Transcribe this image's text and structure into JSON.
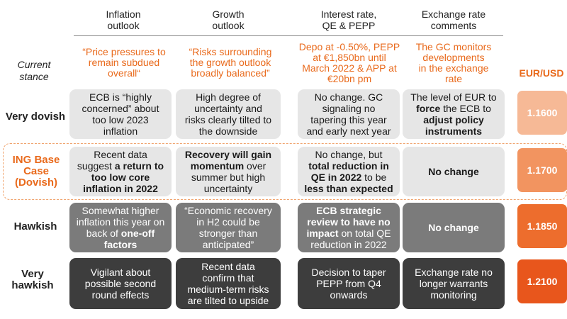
{
  "columns": [
    [
      "Inflation",
      "outlook"
    ],
    [
      "Growth",
      "outlook"
    ],
    [
      "Interest rate,",
      "QE & PEPP"
    ],
    [
      "Exchange rate",
      "comments"
    ]
  ],
  "current_stance": {
    "label": [
      "Current",
      "stance"
    ],
    "inflation": [
      "“Price pressures to",
      "remain subdued",
      "overall“"
    ],
    "growth": [
      "“Risks surrounding",
      "the growth outlook",
      "broadly balanced”"
    ],
    "rates": [
      "Depo at -0.50%, PEPP",
      "at €1,850bn until",
      "March 2022 & APP at",
      "€20bn pm"
    ],
    "fx": [
      "The GC monitors",
      "developments",
      "in the exchange",
      "rate"
    ]
  },
  "eurusd_header": "EUR/USD",
  "rows": {
    "very_dovish": {
      "label": [
        "Very dovish"
      ],
      "eurusd": "1.1600",
      "inflation": [
        "ECB is “highly",
        "concerned” about",
        "too low 2023",
        "inflation"
      ],
      "growth": [
        "High degree of",
        "uncertainty and",
        "risks clearly tilted to",
        "the downside"
      ],
      "rates": [
        "No change. GC",
        "signaling no",
        "tapering this year",
        "and early next year"
      ],
      "fx": {
        "line1": "The level of EUR to",
        "line2_bold": "force",
        "line2_rest": " the ECB to",
        "line3": "adjust policy",
        "line4": "instruments"
      }
    },
    "base": {
      "label": [
        "ING Base",
        "Case",
        "(Dovish)"
      ],
      "eurusd": "1.1700",
      "inflation": {
        "line1": "Recent data",
        "line2_rest": "suggest ",
        "line2_bold": "a return to",
        "line3": "too low core",
        "line4": "inflation in 2022"
      },
      "growth": {
        "line1": "Recovery will gain",
        "line2": "momentum",
        "line2_rest": " over",
        "line3": "summer but high",
        "line4": "uncertainty"
      },
      "rates": {
        "line1": "No change, but",
        "line2": "total reduction in",
        "line3_bold": "QE in 2022",
        "line3_rest": " to be",
        "line4": "less than expected"
      },
      "fx": "No change"
    },
    "hawkish": {
      "label": [
        "Hawkish"
      ],
      "eurusd": "1.1850",
      "inflation": {
        "line1": "Somewhat higher",
        "line2": "inflation this year on",
        "line3_rest": "back of ",
        "line3_bold": "one-off",
        "line4": "factors"
      },
      "growth": [
        "“Economic recovery",
        "in H2 could be",
        "stronger than",
        "anticipated”"
      ],
      "rates": {
        "line1": "ECB strategic",
        "line2": "review to have no",
        "line3_bold": "impact",
        "line3_rest": " on total QE",
        "line4": "reduction in 2022"
      },
      "fx": "No change"
    },
    "very_hawkish": {
      "label": [
        "Very",
        "hawkish"
      ],
      "eurusd": "1.2100",
      "inflation": [
        "Vigilant about",
        "possible second",
        "round effects"
      ],
      "growth": [
        "Recent data",
        "confirm that",
        "medium-term risks",
        "are tilted to upside"
      ],
      "rates": [
        "Decision to taper",
        "PEPP from Q4",
        "onwards"
      ],
      "fx": [
        "Exchange rate no",
        "longer warrants",
        "monitoring"
      ]
    }
  },
  "colors": {
    "accent": "#e96a1c",
    "eur_1": "#f6b996",
    "eur_2": "#f29460",
    "eur_3": "#ed6d2d",
    "eur_4": "#e8561c"
  }
}
